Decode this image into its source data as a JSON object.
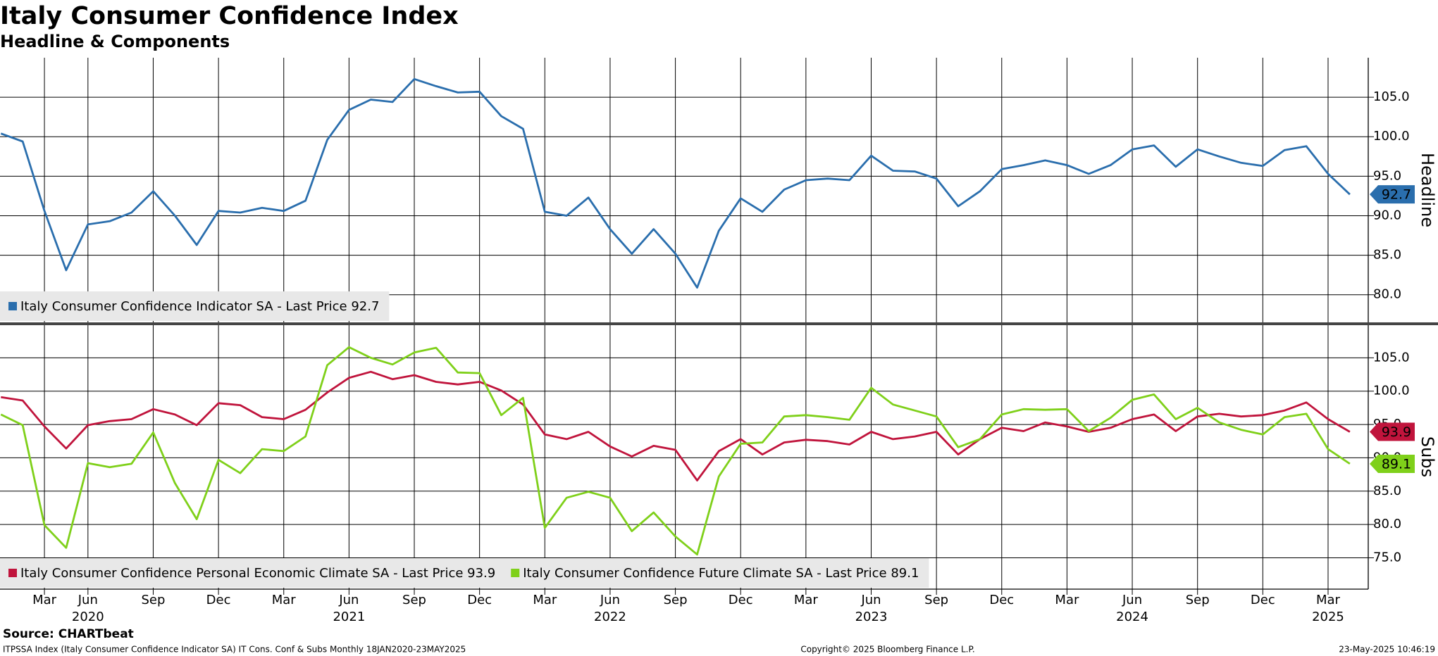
{
  "title": "Italy Consumer Confidence Index",
  "subtitle": "Headline & Components",
  "source": "Source: CHARTbeat",
  "footer_left": "ITPSSA Index (Italy Consumer Confidence Indicator SA) IT Cons. Conf & Subs  Monthly 18JAN2020-23MAY2025",
  "footer_center": "Copyright© 2025 Bloomberg Finance L.P.",
  "footer_right": "23-May-2025 10:46:19",
  "x_axis": {
    "ticks": [
      {
        "value": 2,
        "label": "Mar"
      },
      {
        "value": 4,
        "label": "Jun"
      },
      {
        "value": 7,
        "label": "Sep"
      },
      {
        "value": 10,
        "label": "Dec"
      },
      {
        "value": 13,
        "label": "Mar"
      },
      {
        "value": 16,
        "label": "Jun"
      },
      {
        "value": 19,
        "label": "Sep"
      },
      {
        "value": 22,
        "label": "Dec"
      },
      {
        "value": 25,
        "label": "Mar"
      },
      {
        "value": 28,
        "label": "Jun"
      },
      {
        "value": 31,
        "label": "Sep"
      },
      {
        "value": 34,
        "label": "Dec"
      },
      {
        "value": 37,
        "label": "Mar"
      },
      {
        "value": 40,
        "label": "Jun"
      },
      {
        "value": 43,
        "label": "Sep"
      },
      {
        "value": 46,
        "label": "Dec"
      },
      {
        "value": 49,
        "label": "Mar"
      },
      {
        "value": 52,
        "label": "Jun"
      },
      {
        "value": 55,
        "label": "Sep"
      },
      {
        "value": 58,
        "label": "Dec"
      },
      {
        "value": 61,
        "label": "Mar"
      }
    ],
    "years": [
      {
        "value": 4,
        "label": "2020"
      },
      {
        "value": 16,
        "label": "2021"
      },
      {
        "value": 28,
        "label": "2022"
      },
      {
        "value": 40,
        "label": "2023"
      },
      {
        "value": 52,
        "label": "2024"
      },
      {
        "value": 61,
        "label": "2025"
      }
    ]
  },
  "chart_data": [
    {
      "type": "line",
      "y_label": "Headline",
      "ylim": [
        76.5,
        110
      ],
      "yticks": [
        {
          "value": 80,
          "label": "80.0"
        },
        {
          "value": 85,
          "label": "85.0"
        },
        {
          "value": 90,
          "label": "90.0"
        },
        {
          "value": 95,
          "label": "95.0"
        },
        {
          "value": 100,
          "label": "100.0"
        },
        {
          "value": 105,
          "label": "105.0"
        }
      ],
      "grid": true,
      "series": [
        {
          "name": "Italy Consumer Confidence Indicator SA - Last Price 92.7",
          "color": "#2a6ead",
          "last_price_label": "92.7",
          "values": [
            100.4,
            99.4,
            90.6,
            83.1,
            88.9,
            89.3,
            90.4,
            93.1,
            90.0,
            86.3,
            90.6,
            90.4,
            91.0,
            90.6,
            91.9,
            99.6,
            103.4,
            104.7,
            104.4,
            107.3,
            106.4,
            105.6,
            105.7,
            102.6,
            101.0,
            90.5,
            90.0,
            92.3,
            88.3,
            85.2,
            88.3,
            85.2,
            80.9,
            88.1,
            92.2,
            90.5,
            93.3,
            94.5,
            94.7,
            94.5,
            97.6,
            95.7,
            95.6,
            94.7,
            91.2,
            93.1,
            95.9,
            96.4,
            97.0,
            96.4,
            95.3,
            96.4,
            98.4,
            98.9,
            96.2,
            98.4,
            97.5,
            96.7,
            96.3,
            98.3,
            98.8,
            95.3,
            92.7
          ]
        }
      ]
    },
    {
      "type": "line",
      "y_label": "Subs",
      "ylim": [
        70.3,
        110
      ],
      "yticks": [
        {
          "value": 75,
          "label": "75.0"
        },
        {
          "value": 80,
          "label": "80.0"
        },
        {
          "value": 85,
          "label": "85.0"
        },
        {
          "value": 90,
          "label": "90.0"
        },
        {
          "value": 95,
          "label": "95.0"
        },
        {
          "value": 100,
          "label": "100.0"
        },
        {
          "value": 105,
          "label": "105.0"
        }
      ],
      "grid": true,
      "series": [
        {
          "name": "Italy Consumer Confidence Personal Economic Climate SA - Last Price 93.9",
          "color": "#c0143c",
          "last_price_label": "93.9",
          "values": [
            99.1,
            98.6,
            94.7,
            91.4,
            94.9,
            95.5,
            95.8,
            97.3,
            96.5,
            94.9,
            98.2,
            97.9,
            96.1,
            95.8,
            97.2,
            99.8,
            102.0,
            102.9,
            101.8,
            102.4,
            101.4,
            101.0,
            101.4,
            100.1,
            98.0,
            93.5,
            92.8,
            93.9,
            91.7,
            90.2,
            91.8,
            91.2,
            86.6,
            91.0,
            92.8,
            90.5,
            92.3,
            92.7,
            92.5,
            92.0,
            93.9,
            92.8,
            93.2,
            93.9,
            90.5,
            92.8,
            94.5,
            94.0,
            95.3,
            94.7,
            93.9,
            94.5,
            95.8,
            96.5,
            94.0,
            96.2,
            96.6,
            96.2,
            96.4,
            97.1,
            98.3,
            95.8,
            93.9
          ]
        },
        {
          "name": "Italy Consumer Confidence Future Climate SA - Last Price 89.1",
          "color": "#7fd01a",
          "last_price_label": "89.1",
          "values": [
            96.5,
            94.9,
            79.9,
            76.5,
            89.2,
            88.6,
            89.1,
            93.8,
            86.2,
            80.8,
            89.7,
            87.7,
            91.3,
            91.0,
            93.2,
            103.9,
            106.6,
            105.0,
            104.0,
            105.8,
            106.5,
            102.8,
            102.7,
            96.4,
            99.0,
            79.5,
            84.0,
            84.9,
            84.0,
            79.0,
            81.8,
            78.2,
            75.5,
            87.2,
            92.1,
            92.3,
            96.2,
            96.4,
            96.1,
            95.7,
            100.5,
            98.0,
            97.1,
            96.2,
            91.6,
            92.8,
            96.5,
            97.3,
            97.2,
            97.3,
            94.0,
            96.0,
            98.7,
            99.5,
            95.8,
            97.5,
            95.3,
            94.2,
            93.5,
            96.1,
            96.6,
            91.3,
            89.1
          ]
        }
      ]
    }
  ]
}
